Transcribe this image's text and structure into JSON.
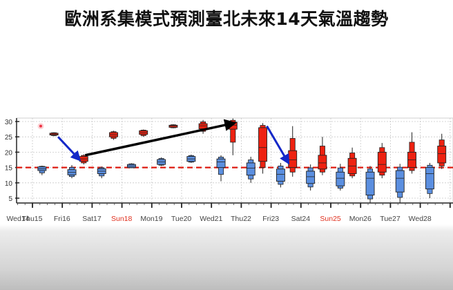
{
  "title": "歐洲系集模式預測臺北未來14天氣溫趨勢",
  "colors": {
    "max_box": "#ee2211",
    "min_box": "#5b8fe0",
    "reference_line": "#dd1a0f",
    "weekend_label": "#e0301e",
    "weekday_label": "#444444",
    "annotation_blue": "#1428c8",
    "annotation_black": "#000000",
    "outlier": "#ee3344"
  },
  "chart_data": {
    "type": "box",
    "title": "歐洲系集模式預測臺北未來14天氣溫趨勢",
    "xlabel": "",
    "ylabel": "",
    "ylim": [
      3,
      31
    ],
    "yticks": [
      5,
      10,
      15,
      20,
      25,
      30
    ],
    "grid": true,
    "reference_line": 15,
    "categories": [
      "Wed14",
      "Thu15",
      "Fri16",
      "Sat17",
      "Sun18",
      "Mon19",
      "Tue20",
      "Wed21",
      "Thu22",
      "Fri23",
      "Sat24",
      "Sun25",
      "Mon26",
      "Tue27",
      "Wed28"
    ],
    "weekend": [
      "Sun18",
      "Sun25"
    ],
    "series": [
      {
        "name": "min_temp",
        "color": "#5b8fe0",
        "boxes": [
          null,
          {
            "low": 12.5,
            "q1": 14.0,
            "median": 14.6,
            "q3": 15.2,
            "high": 15.6
          },
          {
            "low": 11.5,
            "q1": 12.6,
            "median": 13.4,
            "q3": 14.3,
            "high": 15.8
          },
          {
            "low": 11.5,
            "q1": 13.0,
            "median": 13.8,
            "q3": 14.6,
            "high": 15.3
          },
          {
            "low": 14.8,
            "q1": 15.0,
            "median": 15.5,
            "q3": 16.0,
            "high": 16.4
          },
          {
            "low": 15.5,
            "q1": 16.0,
            "median": 16.8,
            "q3": 17.6,
            "high": 18.3
          },
          {
            "low": 16.5,
            "q1": 17.0,
            "median": 17.8,
            "q3": 18.6,
            "high": 19.2
          },
          {
            "low": 10.5,
            "q1": 15.0,
            "median": 16.8,
            "q3": 17.8,
            "high": 19.0
          },
          {
            "low": 10.0,
            "q1": 12.5,
            "median": 14.8,
            "q3": 16.5,
            "high": 18.5
          },
          {
            "low": 8.5,
            "q1": 10.5,
            "median": 12.8,
            "q3": 14.5,
            "high": 16.5
          },
          {
            "low": 7.5,
            "q1": 9.8,
            "median": 12.0,
            "q3": 13.8,
            "high": 16.0
          },
          {
            "low": 7.5,
            "q1": 9.0,
            "median": 11.5,
            "q3": 13.5,
            "high": 16.2
          },
          {
            "low": 3.5,
            "q1": 6.0,
            "median": 11.5,
            "q3": 13.5,
            "high": 15.5
          },
          {
            "low": 3.5,
            "q1": 7.0,
            "median": 11.5,
            "q3": 14.0,
            "high": 16.2
          },
          {
            "low": 5.0,
            "q1": 8.0,
            "median": 13.0,
            "q3": 15.0,
            "high": 16.5
          }
        ]
      },
      {
        "name": "max_temp",
        "color": "#ee2211",
        "boxes": [
          null,
          {
            "low": 25.2,
            "q1": 25.6,
            "median": 25.9,
            "q3": 26.2,
            "high": 26.5
          },
          {
            "low": 16.0,
            "q1": 17.0,
            "median": 17.8,
            "q3": 18.6,
            "high": 19.3
          },
          {
            "low": 24.0,
            "q1": 25.0,
            "median": 25.7,
            "q3": 26.4,
            "high": 27.0
          },
          {
            "low": 25.0,
            "q1": 25.8,
            "median": 26.4,
            "q3": 27.0,
            "high": 27.4
          },
          {
            "low": 27.8,
            "q1": 28.1,
            "median": 28.5,
            "q3": 28.8,
            "high": 29.1
          },
          {
            "low": 26.0,
            "q1": 27.6,
            "median": 28.6,
            "q3": 29.3,
            "high": 30.5
          },
          {
            "low": 19.0,
            "q1": 27.5,
            "median": 28.8,
            "q3": 29.8,
            "high": 31.0
          },
          {
            "low": 13.0,
            "q1": 17.0,
            "median": 21.5,
            "q3": 28.0,
            "high": 29.5
          },
          {
            "low": 12.0,
            "q1": 15.0,
            "median": 17.5,
            "q3": 20.5,
            "high": 28.5
          },
          {
            "low": 12.5,
            "q1": 14.5,
            "median": 16.5,
            "q3": 19.0,
            "high": 25.0
          },
          {
            "low": 11.5,
            "q1": 13.0,
            "median": 15.5,
            "q3": 18.0,
            "high": 21.5
          },
          {
            "low": 11.5,
            "q1": 13.5,
            "median": 16.0,
            "q3": 20.0,
            "high": 23.0
          },
          {
            "low": 13.0,
            "q1": 15.0,
            "median": 17.5,
            "q3": 20.0,
            "high": 26.5
          },
          {
            "low": 14.5,
            "q1": 16.5,
            "median": 19.5,
            "q3": 22.0,
            "high": 26.0
          }
        ]
      }
    ],
    "outliers": [
      {
        "category": "Wed14",
        "value": 28.5,
        "color": "#ee3344"
      }
    ],
    "annotations": [
      {
        "type": "arrow",
        "color": "#1428c8",
        "from": {
          "category": "Thu15",
          "value": 25.0
        },
        "to": {
          "category": "Fri16",
          "value": 17.5
        }
      },
      {
        "type": "arrow",
        "color": "#000000",
        "from": {
          "category": "Fri16",
          "value": 19.0
        },
        "to": {
          "category": "Wed21",
          "value": 29.5
        }
      },
      {
        "type": "arrow",
        "color": "#1428c8",
        "from": {
          "category": "Thu22",
          "value": 28.5
        },
        "to": {
          "category": "Fri23",
          "value": 16.5
        }
      }
    ]
  }
}
